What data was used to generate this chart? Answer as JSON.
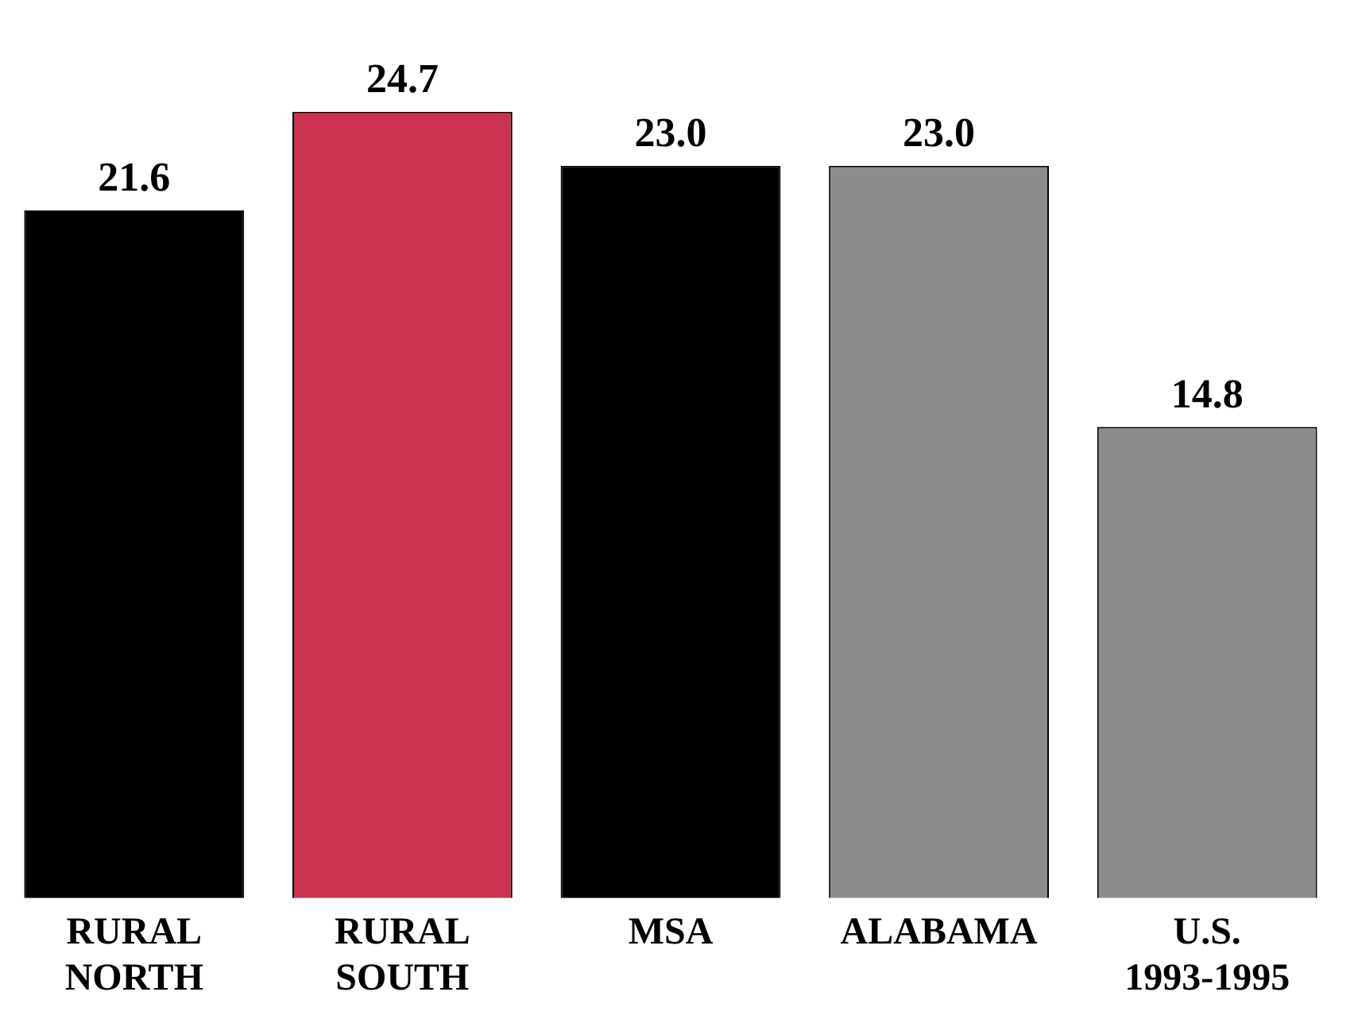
{
  "chart_data": {
    "type": "bar",
    "categories": [
      "RURAL NORTH",
      "RURAL SOUTH",
      "MSA",
      "ALABAMA",
      "U.S. 1993-1995"
    ],
    "values": [
      21.6,
      24.7,
      23.0,
      23.0,
      14.8
    ],
    "colors": [
      "#000000",
      "#cc3350",
      "#000000",
      "#8c8c8c",
      "#8c8c8c"
    ],
    "value_labels": [
      "21.6",
      "24.7",
      "23.0",
      "23.0",
      "14.8"
    ],
    "grid": false,
    "legend": false,
    "tick_labels": "x"
  }
}
